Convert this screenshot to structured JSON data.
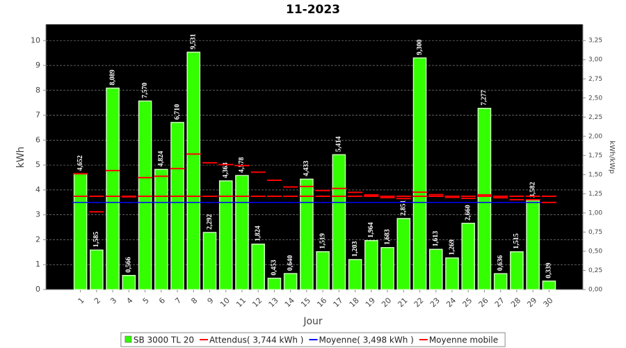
{
  "chart_data": {
    "type": "bar",
    "title": "11-2023",
    "x_label": "Jour",
    "y_label": "kWh",
    "y2_label": "kWh/kWp",
    "categories": [
      "1",
      "2",
      "3",
      "4",
      "5",
      "6",
      "7",
      "8",
      "9",
      "10",
      "11",
      "12",
      "13",
      "14",
      "15",
      "16",
      "17",
      "18",
      "19",
      "20",
      "21",
      "22",
      "23",
      "24",
      "25",
      "26",
      "27",
      "28",
      "29",
      "30"
    ],
    "series": [
      {
        "name": "SB 3000 TL 20",
        "color": "#33ff00",
        "kind": "bar",
        "values": [
          4.652,
          1.585,
          8.089,
          0.566,
          7.57,
          4.824,
          6.71,
          9.531,
          2.292,
          4.363,
          4.578,
          1.824,
          0.453,
          0.64,
          4.433,
          1.519,
          5.414,
          1.203,
          1.964,
          1.683,
          2.851,
          9.3,
          1.613,
          1.269,
          2.66,
          7.277,
          0.636,
          1.515,
          3.582,
          0.339
        ],
        "value_labels": [
          "4,652",
          "1,585",
          "8,089",
          "0,566",
          "7,570",
          "4,824",
          "6,710",
          "9,531",
          "2,292",
          "4,363",
          "4,578",
          "1,824",
          "0,453",
          "0,640",
          "4,433",
          "1,519",
          "5,414",
          "1,203",
          "1,964",
          "1,683",
          "2,851",
          "9,300",
          "1,613",
          "1,269",
          "2,660",
          "7,277",
          "0,636",
          "1,515",
          "3,582",
          "0,339"
        ]
      },
      {
        "name": "Attendus( 3,744 kWh )",
        "color": "#ff0000",
        "kind": "dash",
        "values": [
          3.744,
          3.744,
          3.744,
          3.744,
          3.744,
          3.744,
          3.744,
          3.744,
          3.744,
          3.744,
          3.744,
          3.744,
          3.744,
          3.744,
          3.744,
          3.744,
          3.744,
          3.744,
          3.744,
          3.744,
          3.744,
          3.744,
          3.744,
          3.744,
          3.744,
          3.744,
          3.744,
          3.744,
          3.744,
          3.744
        ]
      },
      {
        "name": "Moyenne( 3,498 kWh )",
        "color": "#0000ff",
        "kind": "line",
        "values": [
          3.498,
          3.498,
          3.498,
          3.498,
          3.498,
          3.498,
          3.498,
          3.498,
          3.498,
          3.498,
          3.498,
          3.498,
          3.498,
          3.498,
          3.498,
          3.498,
          3.498,
          3.498,
          3.498,
          3.498,
          3.498,
          3.498,
          3.498,
          3.498,
          3.498,
          3.498,
          3.498,
          3.498,
          3.498,
          3.498
        ]
      },
      {
        "name": "Moyenne mobile",
        "color": "#ff0000",
        "kind": "dash",
        "values": [
          4.652,
          3.119,
          4.775,
          3.723,
          4.492,
          4.548,
          4.857,
          5.441,
          5.091,
          5.018,
          4.978,
          4.715,
          4.387,
          4.12,
          4.141,
          3.977,
          4.061,
          3.903,
          3.801,
          3.695,
          3.654,
          3.911,
          3.811,
          3.705,
          3.663,
          3.802,
          3.685,
          3.608,
          3.607,
          3.498
        ]
      }
    ],
    "ylim": [
      0,
      10.65
    ],
    "yticks": [
      0,
      1,
      2,
      3,
      4,
      5,
      6,
      7,
      8,
      9,
      10
    ],
    "y2lim": [
      0,
      3.461
    ],
    "y2ticks": [
      {
        "value": 0,
        "label": "0,00"
      },
      {
        "value": 0.25,
        "label": "0,25"
      },
      {
        "value": 0.5,
        "label": "0,50"
      },
      {
        "value": 0.75,
        "label": "0,75"
      },
      {
        "value": 1,
        "label": "1,00"
      },
      {
        "value": 1.25,
        "label": "1,25"
      },
      {
        "value": 1.5,
        "label": "1,50"
      },
      {
        "value": 1.75,
        "label": "1,75"
      },
      {
        "value": 2,
        "label": "2,00"
      },
      {
        "value": 2.25,
        "label": "2,25"
      },
      {
        "value": 2.5,
        "label": "2,50"
      },
      {
        "value": 2.75,
        "label": "2,75"
      },
      {
        "value": 3,
        "label": "3,00"
      },
      {
        "value": 3.25,
        "label": "3,25"
      }
    ],
    "grid": true,
    "background": "#000000",
    "legend": "bottom"
  }
}
